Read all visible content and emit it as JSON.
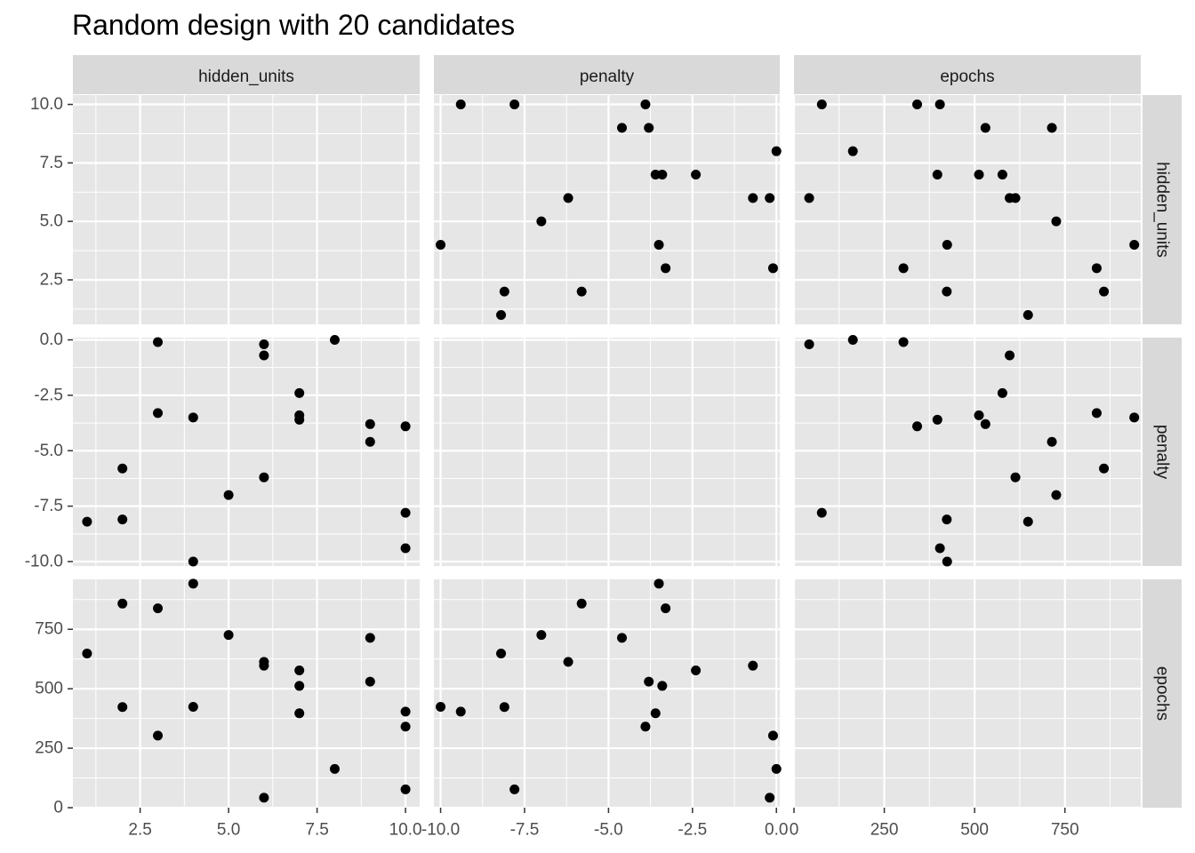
{
  "chart_data": {
    "type": "scatter",
    "title": "Random design with 20 candidates",
    "variables": [
      "hidden_units",
      "penalty",
      "epochs"
    ],
    "axes": {
      "hidden_units": {
        "range": [
          0.6,
          10.4
        ],
        "ticks": [
          2.5,
          5.0,
          7.5,
          10.0
        ],
        "tick_labels": [
          "2.5",
          "5.0",
          "7.5",
          "10.0"
        ]
      },
      "penalty": {
        "range": [
          -10.2,
          0.1
        ],
        "ticks": [
          -10.0,
          -7.5,
          -5.0,
          -2.5,
          0.0
        ],
        "tick_labels": [
          "-10.0",
          "-7.5",
          "-5.0",
          "-2.5",
          "0.0"
        ]
      },
      "epochs": {
        "range": [
          0,
          960
        ],
        "ticks": [
          0,
          250,
          500,
          750
        ],
        "tick_labels": [
          "0",
          "250",
          "500",
          "750"
        ]
      }
    },
    "points": [
      {
        "hidden_units": 10,
        "penalty": -9.4,
        "epochs": 404
      },
      {
        "hidden_units": 10,
        "penalty": -7.8,
        "epochs": 77
      },
      {
        "hidden_units": 9,
        "penalty": -4.6,
        "epochs": 714
      },
      {
        "hidden_units": 9,
        "penalty": -3.8,
        "epochs": 530
      },
      {
        "hidden_units": 10,
        "penalty": -3.9,
        "epochs": 341
      },
      {
        "hidden_units": 7,
        "penalty": -3.6,
        "epochs": 397
      },
      {
        "hidden_units": 7,
        "penalty": -3.4,
        "epochs": 512
      },
      {
        "hidden_units": 7,
        "penalty": -2.4,
        "epochs": 577
      },
      {
        "hidden_units": 8,
        "penalty": 0.0,
        "epochs": 163
      },
      {
        "hidden_units": 4,
        "penalty": -10.0,
        "epochs": 424
      },
      {
        "hidden_units": 6,
        "penalty": -6.2,
        "epochs": 613
      },
      {
        "hidden_units": 5,
        "penalty": -7.0,
        "epochs": 726
      },
      {
        "hidden_units": 6,
        "penalty": -0.7,
        "epochs": 597
      },
      {
        "hidden_units": 6,
        "penalty": -0.2,
        "epochs": 42
      },
      {
        "hidden_units": 3,
        "penalty": -0.1,
        "epochs": 303
      },
      {
        "hidden_units": 4,
        "penalty": -3.5,
        "epochs": 942
      },
      {
        "hidden_units": 3,
        "penalty": -3.3,
        "epochs": 838
      },
      {
        "hidden_units": 2,
        "penalty": -8.1,
        "epochs": 423
      },
      {
        "hidden_units": 2,
        "penalty": -5.8,
        "epochs": 858
      },
      {
        "hidden_units": 1,
        "penalty": -8.2,
        "epochs": 648
      }
    ],
    "style": {
      "panel_background": "#e6e6e6",
      "strip_background": "#d9d9d9",
      "grid_color": "#ffffff",
      "point_color": "#000000"
    }
  }
}
